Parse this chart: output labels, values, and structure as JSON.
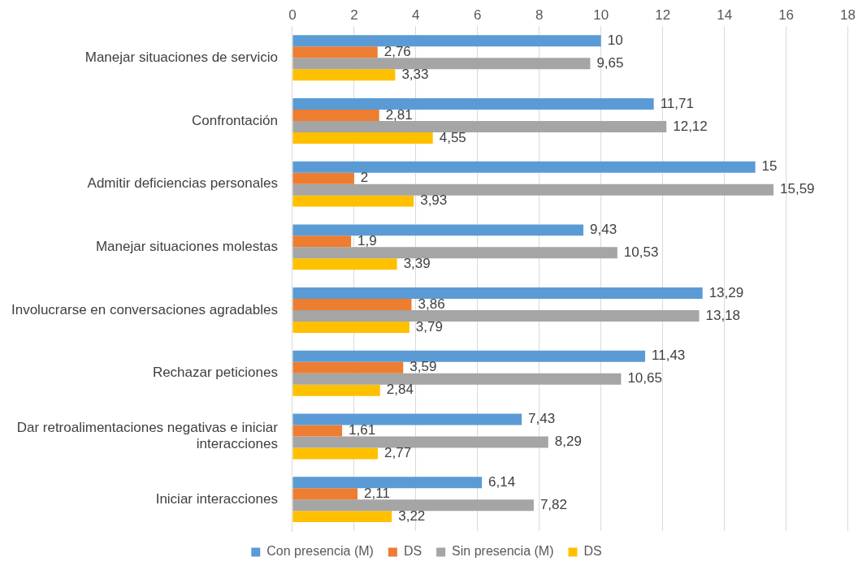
{
  "chart_data": {
    "type": "bar",
    "orientation": "horizontal",
    "categories": [
      "Manejar situaciones de servicio",
      "Confrontación",
      "Admitir deficiencias personales",
      "Manejar situaciones molestas",
      "Involucrarse en conversaciones agradables",
      "Rechazar peticiones",
      "Dar retroalimentaciones negativas e iniciar interacciones",
      "Iniciar interacciones"
    ],
    "series": [
      {
        "name": "Con presencia (M)",
        "color": "#5b9bd5",
        "values": [
          10,
          11.71,
          15,
          9.43,
          13.29,
          11.43,
          7.43,
          6.14
        ],
        "value_labels": [
          "10",
          "11,71",
          "15",
          "9,43",
          "13,29",
          "11,43",
          "7,43",
          "6,14"
        ]
      },
      {
        "name": "DS",
        "color": "#ed7d31",
        "values": [
          2.76,
          2.81,
          2,
          1.9,
          3.86,
          3.59,
          1.61,
          2.11
        ],
        "value_labels": [
          "2,76",
          "2,81",
          "2",
          "1,9",
          "3,86",
          "3,59",
          "1,61",
          "2,11"
        ]
      },
      {
        "name": "Sin presencia (M)",
        "color": "#a5a5a5",
        "values": [
          9.65,
          12.12,
          15.59,
          10.53,
          13.18,
          10.65,
          8.29,
          7.82
        ],
        "value_labels": [
          "9,65",
          "12,12",
          "15,59",
          "10,53",
          "13,18",
          "10,65",
          "8,29",
          "7,82"
        ]
      },
      {
        "name": "DS",
        "color": "#ffc000",
        "values": [
          3.33,
          4.55,
          3.93,
          3.39,
          3.79,
          2.84,
          2.77,
          3.22
        ],
        "value_labels": [
          "3,33",
          "4,55",
          "3,93",
          "3,39",
          "3,79",
          "2,84",
          "2,77",
          "3,22"
        ]
      }
    ],
    "xlim": [
      0,
      18
    ],
    "xticks": [
      0,
      2,
      4,
      6,
      8,
      10,
      12,
      14,
      16,
      18
    ],
    "grid": "x",
    "legend": "bottom"
  }
}
